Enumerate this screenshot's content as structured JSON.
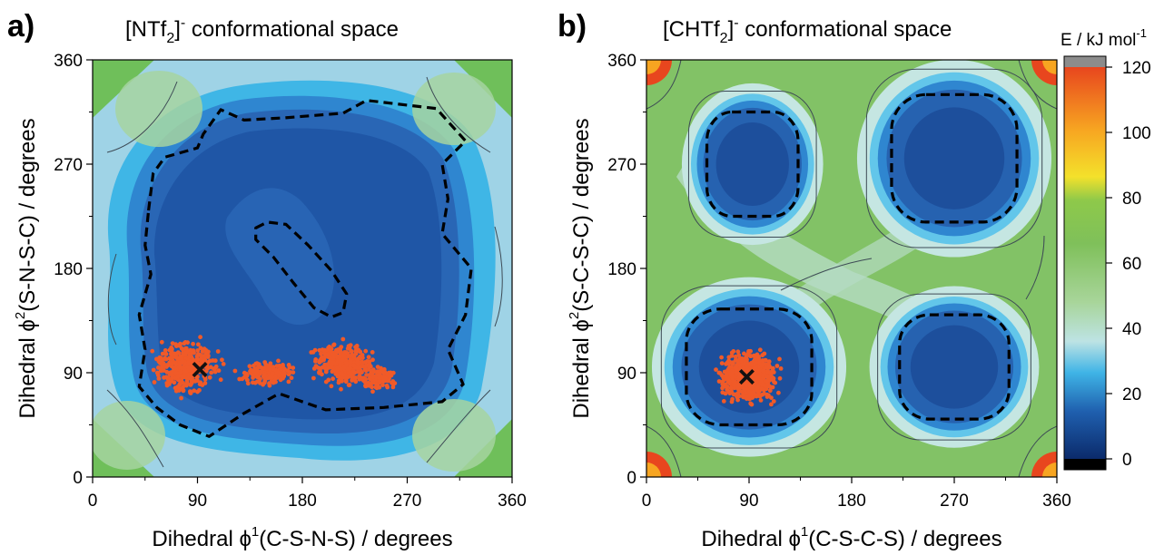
{
  "chart_data": [
    {
      "type": "heatmap",
      "panel_label": "a)",
      "title": {
        "main": "[NTf",
        "sub": "2",
        "close": "]",
        "sup": "-",
        "rest": " conformational space"
      },
      "xlabel": {
        "pre": "Dihedral ",
        "sym": "ϕ",
        "sup": "1",
        "post": "(C-S-N-S) / degrees"
      },
      "ylabel": {
        "pre": "Dihedral ",
        "sym": "ϕ",
        "sup": "2",
        "post": "(S-N-S-C) / degrees"
      },
      "xlim": [
        0,
        360
      ],
      "ylim": [
        0,
        360
      ],
      "xticks": [
        "0",
        "90",
        "180",
        "270",
        "360"
      ],
      "yticks": [
        "0",
        "90",
        "180",
        "270",
        "360"
      ],
      "energy_levels_kJmol": [
        0,
        10,
        15,
        20,
        25,
        30,
        40,
        50,
        60
      ],
      "dashed_contours": [
        {
          "outline": [
            [
              48,
              230
            ],
            [
              52,
              262
            ],
            [
              62,
              276
            ],
            [
              90,
              284
            ],
            [
              95,
              296
            ],
            [
              110,
              317
            ],
            [
              130,
              308
            ],
            [
              165,
              310
            ],
            [
              215,
              314
            ],
            [
              235,
              325
            ],
            [
              295,
              318
            ],
            [
              320,
              290
            ],
            [
              300,
              270
            ],
            [
              305,
              240
            ],
            [
              300,
              210
            ],
            [
              325,
              180
            ],
            [
              320,
              140
            ],
            [
              305,
              110
            ],
            [
              318,
              80
            ],
            [
              300,
              65
            ],
            [
              250,
              60
            ],
            [
              200,
              58
            ],
            [
              160,
              72
            ],
            [
              130,
              55
            ],
            [
              100,
              35
            ],
            [
              75,
              45
            ],
            [
              55,
              60
            ],
            [
              40,
              78
            ],
            [
              45,
              110
            ],
            [
              40,
              140
            ],
            [
              50,
              175
            ],
            [
              45,
              200
            ]
          ]
        },
        {
          "outline": [
            [
              140,
              215
            ],
            [
              150,
              220
            ],
            [
              166,
              218
            ],
            [
              185,
              200
            ],
            [
              205,
              178
            ],
            [
              218,
              158
            ],
            [
              215,
              142
            ],
            [
              205,
              138
            ],
            [
              190,
              146
            ],
            [
              172,
              168
            ],
            [
              155,
              190
            ],
            [
              140,
              205
            ]
          ]
        }
      ],
      "trajectory_region": "orange-red points from ~(50–265, 40–135) degrees",
      "minimum_marker": {
        "label": "×",
        "x": 92,
        "y": 93
      }
    },
    {
      "type": "heatmap",
      "panel_label": "b)",
      "title": {
        "main": "[CHTf",
        "sub": "2",
        "close": "]",
        "sup": "-",
        "rest": " conformational space"
      },
      "xlabel": {
        "pre": "Dihedral ",
        "sym": "ϕ",
        "sup": "1",
        "post": "(C-S-C-S) / degrees"
      },
      "ylabel": {
        "pre": "Dihedral ",
        "sym": "ϕ",
        "sup": "2",
        "post": "(S-C-S-C) / degrees"
      },
      "xlim": [
        0,
        360
      ],
      "ylim": [
        0,
        360
      ],
      "xticks": [
        "0",
        "90",
        "180",
        "270",
        "360"
      ],
      "yticks": [
        "0",
        "90",
        "180",
        "270",
        "360"
      ],
      "wells": [
        {
          "center": [
            93,
            270
          ],
          "rx": 40,
          "ry": 45
        },
        {
          "center": [
            270,
            275
          ],
          "rx": 55,
          "ry": 55
        },
        {
          "center": [
            90,
            95
          ],
          "rx": 55,
          "ry": 50
        },
        {
          "center": [
            270,
            95
          ],
          "rx": 48,
          "ry": 45
        }
      ],
      "trajectory_region": "orange-red points around (90, 90) degrees",
      "minimum_marker": {
        "label": "×",
        "x": 88,
        "y": 87
      }
    }
  ],
  "colorbar": {
    "title": {
      "main": "E / kJ mol",
      "sup": "-1"
    },
    "range": [
      0,
      120
    ],
    "ticks": [
      "0",
      "20",
      "40",
      "60",
      "80",
      "100",
      "120"
    ],
    "colors": {
      "low": "#0b2b6b",
      "mid": "#3fb4e6",
      "green": "#7fc05a",
      "yellow": "#f4e12b",
      "high": "#e8461e",
      "over": "#8c8c8c",
      "under": "#000000"
    }
  },
  "colors": {
    "trajectory": "#f05a28",
    "marker": "#111111",
    "contour": "#3d4a55"
  }
}
